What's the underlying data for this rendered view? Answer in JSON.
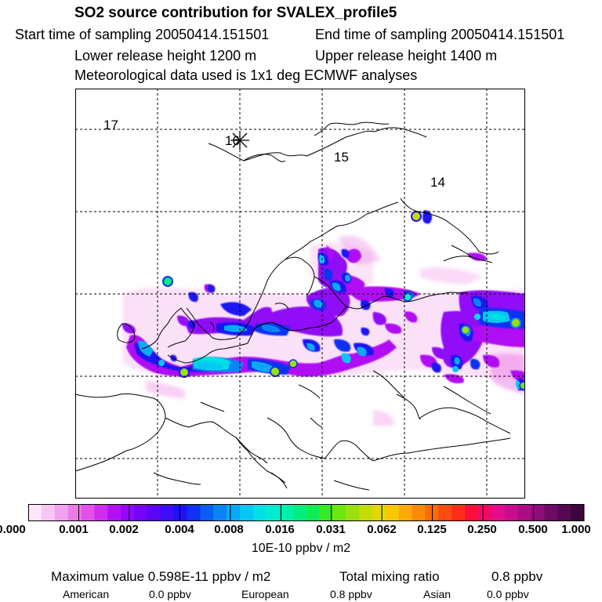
{
  "header": {
    "title": "SO2 source contribution for SVALEX_profile5",
    "start_time": "Start time of sampling 20050414.151501",
    "end_time": "End time of sampling 20050414.151501",
    "lower_release": "Lower release height 1200 m",
    "upper_release": "Upper release height 1400 m",
    "met_data": "Meteorological data used is 1x1 deg ECMWF analyses"
  },
  "map": {
    "trajectory_labels": [
      "17",
      "16",
      "15",
      "14"
    ],
    "release_marker_icon": "star-marker-icon",
    "colors": {
      "coast": "#000000",
      "grid": "#000000",
      "background": "#ffffff"
    }
  },
  "colorbar": {
    "tick_labels": [
      "0.000",
      "0.001",
      "0.002",
      "0.004",
      "0.008",
      "0.016",
      "0.031",
      "0.062",
      "0.125",
      "0.250",
      "0.500",
      "1.000"
    ],
    "unit": "10E-10 ppbv / m2",
    "colors": [
      "#fde6fb",
      "#f8c6f3",
      "#f3a2ec",
      "#ec7ae8",
      "#e252ea",
      "#cf2cf0",
      "#b010f4",
      "#9208f7",
      "#7404f5",
      "#5a06f3",
      "#3f0df3",
      "#1f12f1",
      "#1030f2",
      "#0c5df2",
      "#0a84f4",
      "#09a9f5",
      "#06c7f3",
      "#00dfe6",
      "#00ecd0",
      "#00f0aa",
      "#00ee80",
      "#10ea55",
      "#3ae828",
      "#6ee610",
      "#9ae00c",
      "#c2dc08",
      "#e2d606",
      "#f6c804",
      "#fcaa04",
      "#fd8a04",
      "#fd6a08",
      "#fc4c0e",
      "#fb2e1a",
      "#f7103a",
      "#f00a66",
      "#e20c8c",
      "#c80c8e",
      "#ac0c86",
      "#8c0c78",
      "#6e0a66",
      "#540852",
      "#3c063c"
    ]
  },
  "footer": {
    "max_label": "Maximum value  0.598E-11 ppbv / m2",
    "total_label": "Total mixing ratio",
    "total_value": "0.8 ppbv",
    "american_label": "American",
    "american_value": "0.0 ppbv",
    "european_label": "European",
    "european_value": "0.8 ppbv",
    "asian_label": "Asian",
    "asian_value": "0.0 ppbv"
  }
}
